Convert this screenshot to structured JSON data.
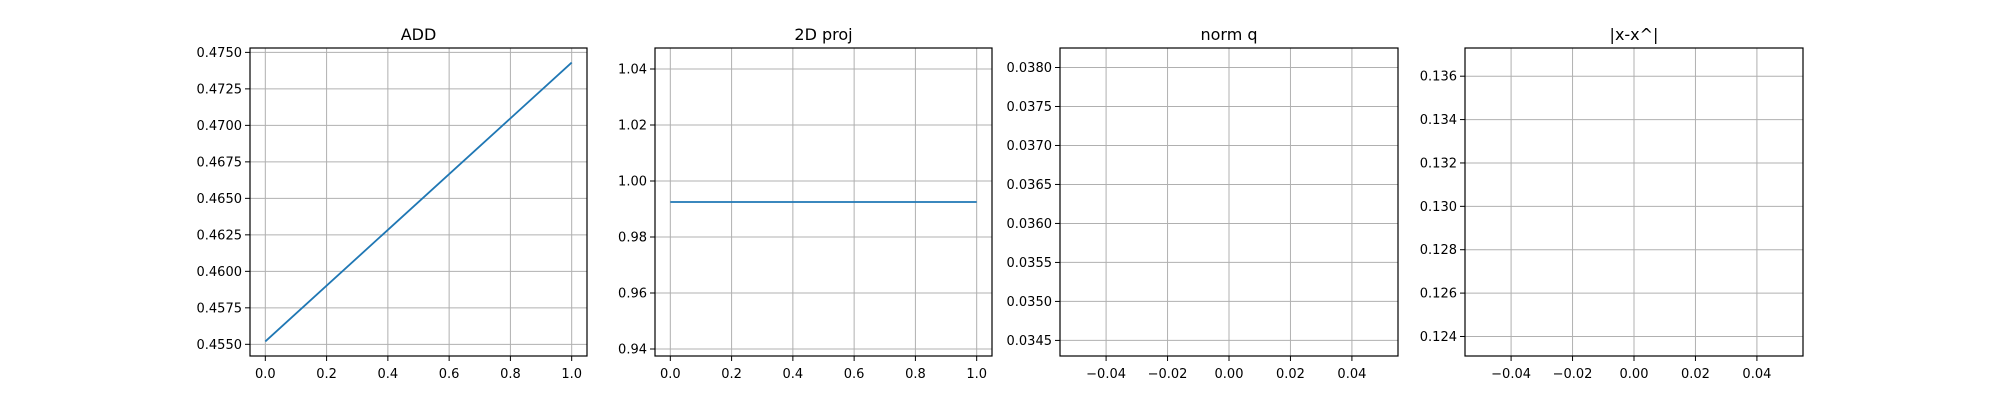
{
  "figure": {
    "background": "#ffffff",
    "line_color": "#1f77b4"
  },
  "chart_data": [
    {
      "type": "line",
      "title": "ADD",
      "xlabel": "",
      "ylabel": "",
      "xlim": [
        -0.05,
        1.05
      ],
      "ylim": [
        0.4542,
        0.4753
      ],
      "xticks": [
        0.0,
        0.2,
        0.4,
        0.6,
        0.8,
        1.0
      ],
      "xtick_labels": [
        "0.0",
        "0.2",
        "0.4",
        "0.6",
        "0.8",
        "1.0"
      ],
      "yticks": [
        0.455,
        0.4575,
        0.46,
        0.4625,
        0.465,
        0.4675,
        0.47,
        0.4725,
        0.475
      ],
      "ytick_labels": [
        "0.4550",
        "0.4575",
        "0.4600",
        "0.4625",
        "0.4650",
        "0.4675",
        "0.4700",
        "0.4725",
        "0.4750"
      ],
      "grid": true,
      "series": [
        {
          "x": [
            0.0,
            1.0
          ],
          "y": [
            0.4552,
            0.4743
          ]
        }
      ]
    },
    {
      "type": "line",
      "title": "2D proj",
      "xlabel": "",
      "ylabel": "",
      "xlim": [
        -0.05,
        1.05
      ],
      "ylim": [
        0.9375,
        1.0475
      ],
      "xticks": [
        0.0,
        0.2,
        0.4,
        0.6,
        0.8,
        1.0
      ],
      "xtick_labels": [
        "0.0",
        "0.2",
        "0.4",
        "0.6",
        "0.8",
        "1.0"
      ],
      "yticks": [
        0.94,
        0.96,
        0.98,
        1.0,
        1.02,
        1.04
      ],
      "ytick_labels": [
        "0.94",
        "0.96",
        "0.98",
        "1.00",
        "1.02",
        "1.04"
      ],
      "grid": true,
      "series": [
        {
          "x": [
            0.0,
            1.0
          ],
          "y": [
            0.9925,
            0.9925
          ]
        }
      ]
    },
    {
      "type": "line",
      "title": "norm q",
      "xlabel": "",
      "ylabel": "",
      "xlim": [
        -0.055,
        0.055
      ],
      "ylim": [
        0.0343,
        0.03825
      ],
      "xticks": [
        -0.04,
        -0.02,
        0.0,
        0.02,
        0.04
      ],
      "xtick_labels": [
        "−0.04",
        "−0.02",
        "0.00",
        "0.02",
        "0.04"
      ],
      "yticks": [
        0.0345,
        0.035,
        0.0355,
        0.036,
        0.0365,
        0.037,
        0.0375,
        0.038
      ],
      "ytick_labels": [
        "0.0345",
        "0.0350",
        "0.0355",
        "0.0360",
        "0.0365",
        "0.0370",
        "0.0375",
        "0.0380"
      ],
      "grid": true,
      "series": []
    },
    {
      "type": "line",
      "title": "|x-x^|",
      "xlabel": "",
      "ylabel": "",
      "xlim": [
        -0.055,
        0.055
      ],
      "ylim": [
        0.1231,
        0.1373
      ],
      "xticks": [
        -0.04,
        -0.02,
        0.0,
        0.02,
        0.04
      ],
      "xtick_labels": [
        "−0.04",
        "−0.02",
        "0.00",
        "0.02",
        "0.04"
      ],
      "yticks": [
        0.124,
        0.126,
        0.128,
        0.13,
        0.132,
        0.134,
        0.136
      ],
      "ytick_labels": [
        "0.124",
        "0.126",
        "0.128",
        "0.130",
        "0.132",
        "0.134",
        "0.136"
      ],
      "grid": true,
      "series": []
    }
  ]
}
